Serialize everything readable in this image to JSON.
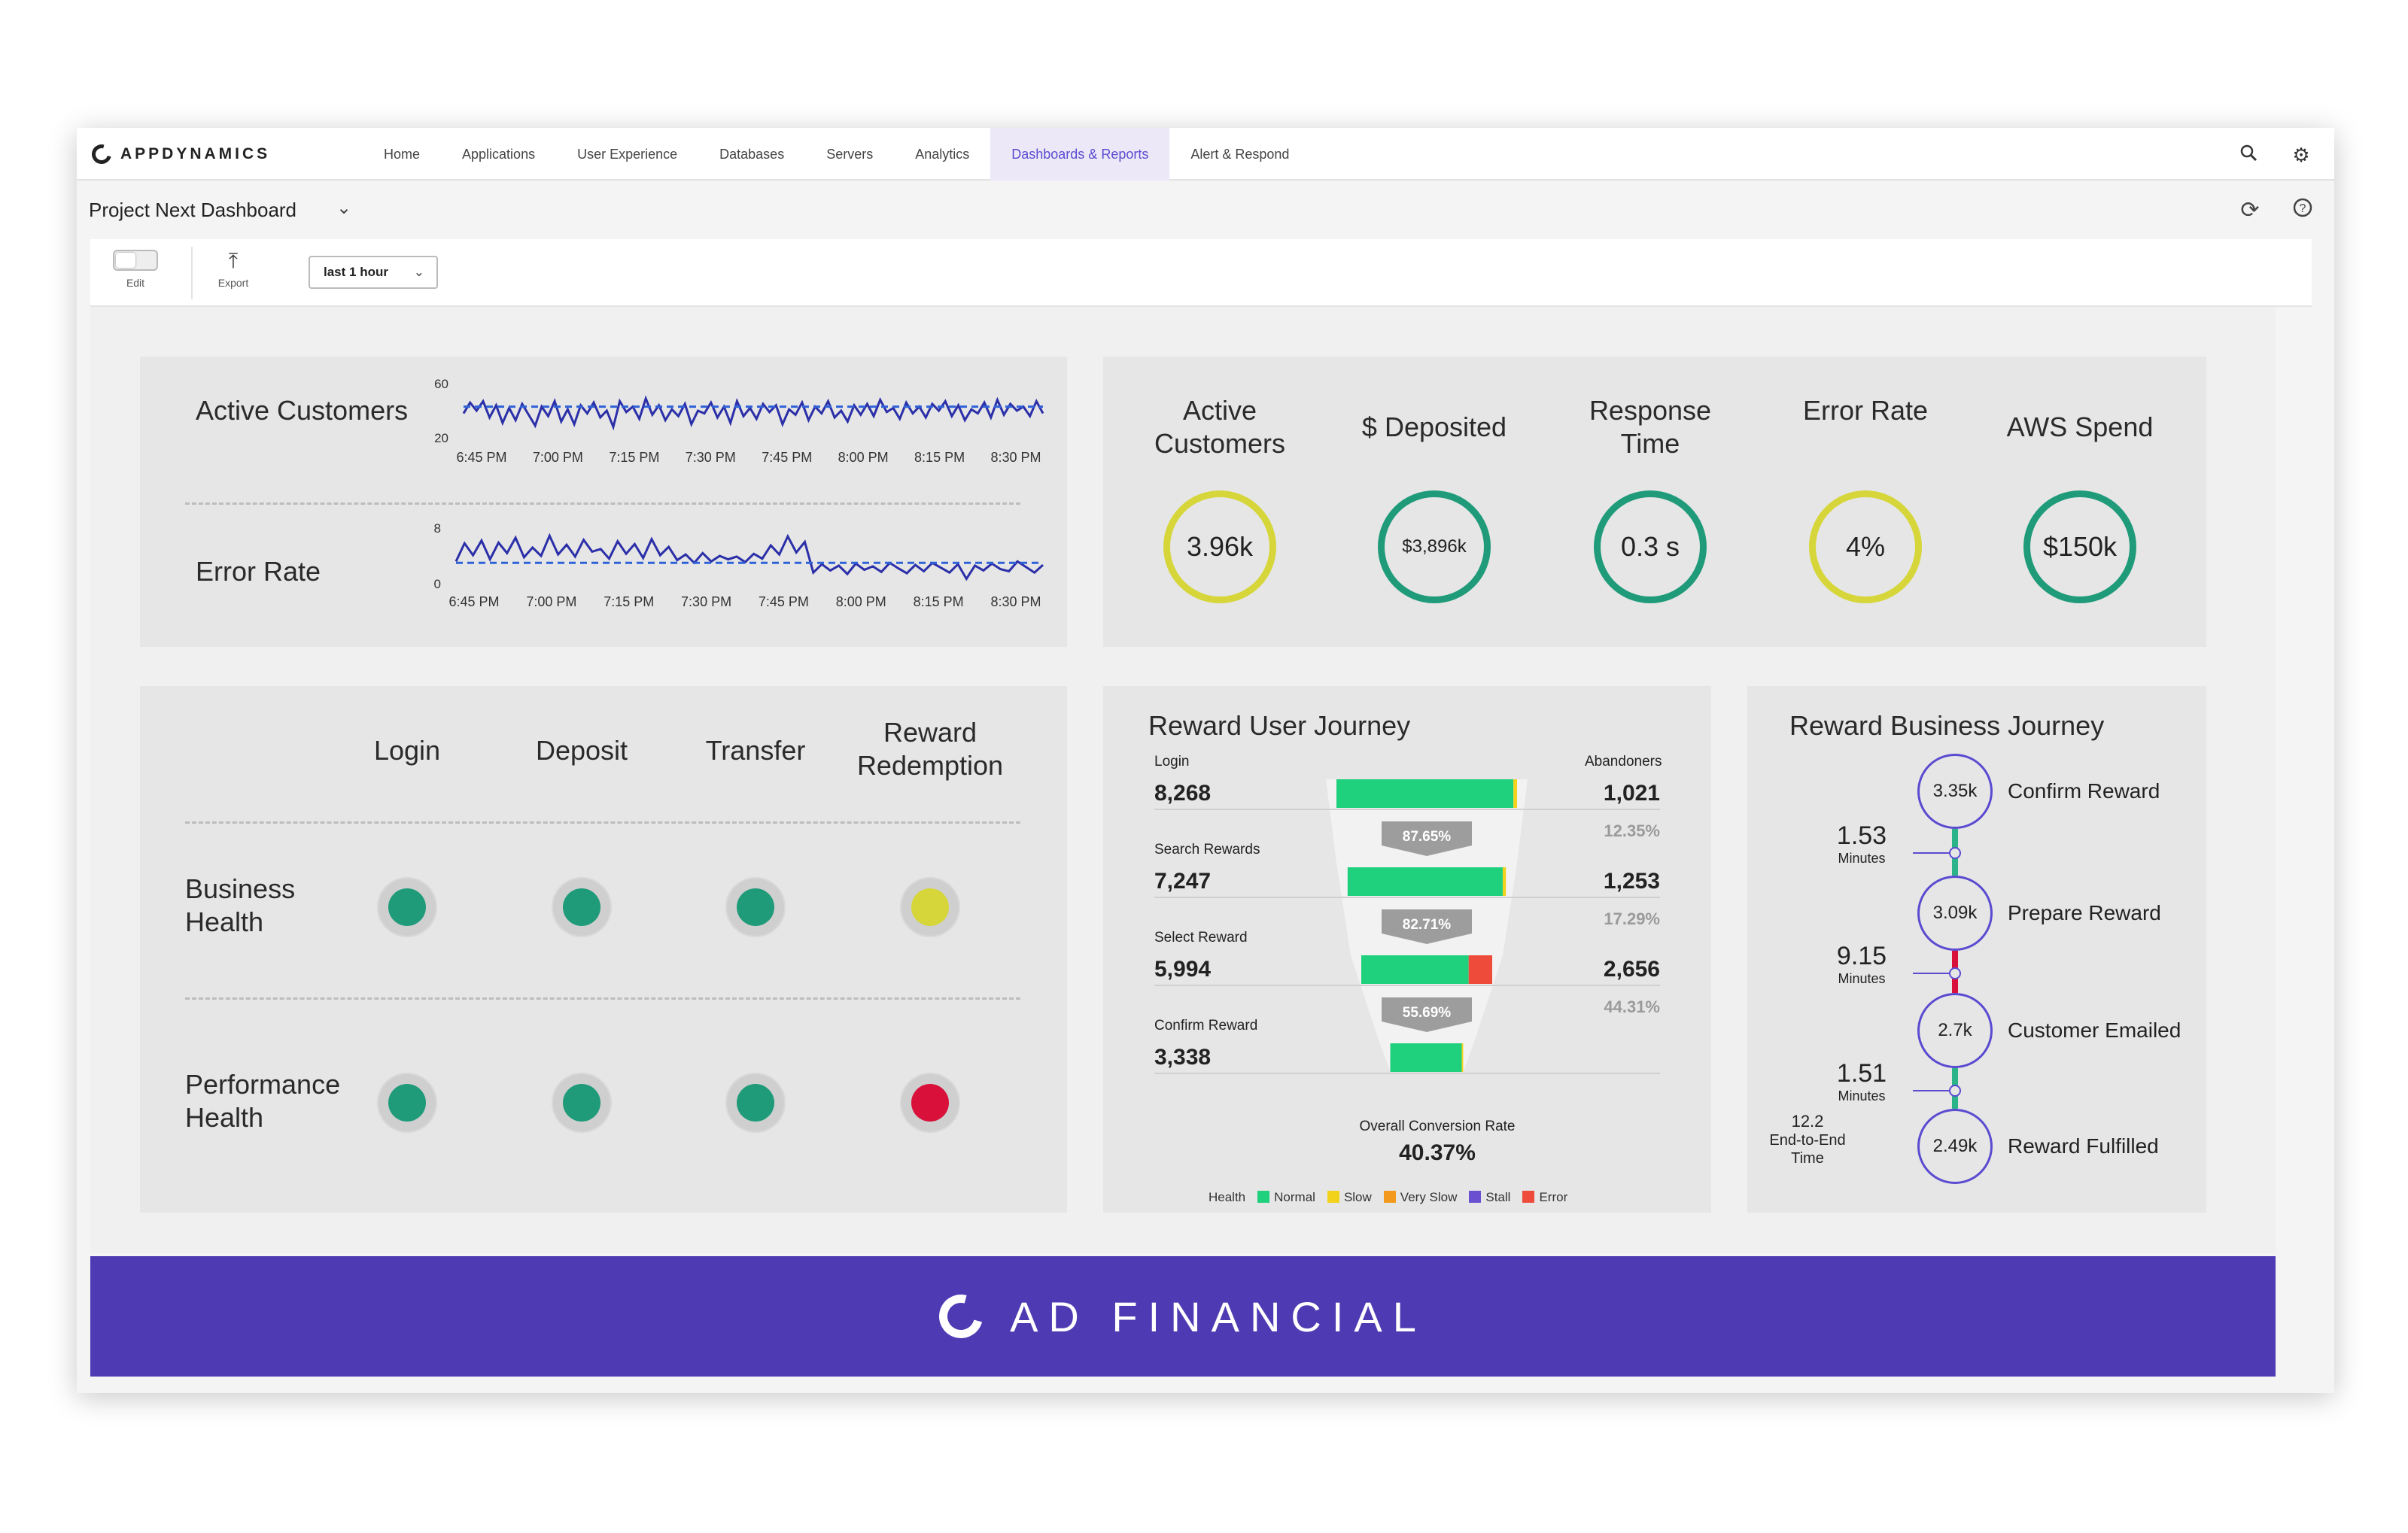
{
  "app": {
    "brand": "APPDYNAMICS"
  },
  "nav": {
    "items": [
      {
        "label": "Home"
      },
      {
        "label": "Applications"
      },
      {
        "label": "User Experience"
      },
      {
        "label": "Databases"
      },
      {
        "label": "Servers"
      },
      {
        "label": "Analytics"
      },
      {
        "label": "Dashboards & Reports",
        "active": true
      },
      {
        "label": "Alert & Respond"
      }
    ]
  },
  "dashboard": {
    "title": "Project Next Dashboard"
  },
  "toolbar": {
    "edit_label": "Edit",
    "export_label": "Export",
    "time_range": "last 1 hour"
  },
  "timeseries": {
    "x_ticks": [
      "6:45 PM",
      "7:00 PM",
      "7:15 PM",
      "7:30 PM",
      "7:45 PM",
      "8:00 PM",
      "8:15 PM",
      "8:30 PM"
    ],
    "active_customers": {
      "label": "Active Customers",
      "y_ticks": [
        "60",
        "20"
      ],
      "baseline": 43,
      "values": [
        38,
        46,
        40,
        47,
        35,
        44,
        31,
        42,
        33,
        45,
        37,
        29,
        43,
        36,
        47,
        32,
        41,
        30,
        44,
        38,
        46,
        35,
        40,
        28,
        47,
        39,
        43,
        34,
        49,
        37,
        44,
        33,
        41,
        36,
        45,
        30,
        40,
        38,
        46,
        35,
        43,
        31,
        47,
        36,
        42,
        34,
        45,
        39,
        44,
        30,
        41,
        37,
        46,
        33,
        43,
        38,
        47,
        35,
        40,
        32,
        44,
        37,
        45,
        36,
        48,
        39,
        42,
        34,
        46,
        38,
        43,
        35,
        45,
        40,
        47,
        36,
        44,
        33,
        41,
        38,
        46,
        35,
        48,
        37,
        45,
        40,
        43,
        36,
        47,
        38
      ]
    },
    "error_rate": {
      "label": "Error Rate",
      "y_ticks": [
        "8",
        "0"
      ],
      "baseline": 3,
      "values": [
        3.2,
        5.8,
        4.1,
        6.2,
        3.5,
        5.9,
        4.4,
        6.6,
        3.8,
        5.2,
        4.0,
        6.9,
        4.2,
        5.6,
        3.9,
        6.3,
        4.6,
        5.0,
        3.6,
        6.1,
        4.3,
        5.7,
        3.7,
        6.4,
        4.1,
        5.3,
        3.4,
        4.2,
        3.0,
        4.4,
        3.2,
        4.0,
        3.5,
        3.9,
        3.1,
        4.3,
        3.6,
        5.5,
        4.2,
        6.8,
        4.5,
        6.0,
        1.6,
        2.8,
        1.9,
        2.6,
        1.4,
        2.9,
        2.0,
        2.5,
        1.7,
        3.0,
        2.2,
        1.5,
        2.7,
        1.8,
        3.0,
        2.3,
        1.6,
        2.8,
        0.7,
        2.6,
        1.9,
        2.9,
        2.1,
        1.8,
        3.2,
        2.4,
        1.6,
        2.7
      ]
    }
  },
  "kpis": [
    {
      "label": "Active Customers",
      "value": "3.96k",
      "color": "#d6d63a"
    },
    {
      "label": "$ Deposited",
      "value": "$3,896k",
      "color": "#1f9b7a"
    },
    {
      "label": "Response Time",
      "value": "0.3 s",
      "color": "#1f9b7a"
    },
    {
      "label": "Error Rate",
      "value": "4%",
      "color": "#d6d63a"
    },
    {
      "label": "AWS Spend",
      "value": "$150k",
      "color": "#1f9b7a"
    }
  ],
  "health": {
    "columns": [
      "Login",
      "Deposit",
      "Transfer",
      "Reward Redemption"
    ],
    "rows": [
      {
        "label": "Business Health",
        "statuses": [
          "#1f9b7a",
          "#1f9b7a",
          "#1f9b7a",
          "#d6d63a"
        ]
      },
      {
        "label": "Performance Health",
        "statuses": [
          "#1f9b7a",
          "#1f9b7a",
          "#1f9b7a",
          "#d8103a"
        ]
      }
    ]
  },
  "user_journey": {
    "title": "Reward User Journey",
    "abandoners_label": "Abandoners",
    "steps": [
      {
        "name": "Login",
        "value": "8,268",
        "abandoners": "1,021",
        "abandon_pct": "12.35%",
        "conversion": "87.65%"
      },
      {
        "name": "Search Rewards",
        "value": "7,247",
        "abandoners": "1,253",
        "abandon_pct": "17.29%",
        "conversion": "82.71%"
      },
      {
        "name": "Select Reward",
        "value": "5,994",
        "abandoners": "2,656",
        "abandon_pct": "44.31%",
        "conversion": "55.69%"
      },
      {
        "name": "Confirm Reward",
        "value": "3,338"
      }
    ],
    "overall_label": "Overall Conversion Rate",
    "overall_value": "40.37%",
    "legend": {
      "title": "Health",
      "items": [
        {
          "label": "Normal",
          "color": "#1fd07c"
        },
        {
          "label": "Slow",
          "color": "#f2d21a"
        },
        {
          "label": "Very Slow",
          "color": "#f39a1e"
        },
        {
          "label": "Stall",
          "color": "#6a4fd0"
        },
        {
          "label": "Error",
          "color": "#ee4b3b"
        }
      ]
    }
  },
  "business_journey": {
    "title": "Reward Business Journey",
    "steps": [
      {
        "value": "3.35k",
        "name": "Confirm Reward"
      },
      {
        "value": "3.09k",
        "name": "Prepare Reward"
      },
      {
        "value": "2.7k",
        "name": "Customer Emailed"
      },
      {
        "value": "2.49k",
        "name": "Reward Fulfilled"
      }
    ],
    "intervals": [
      {
        "value": "1.53",
        "unit": "Minutes"
      },
      {
        "value": "9.15",
        "unit": "Minutes"
      },
      {
        "value": "1.51",
        "unit": "Minutes"
      }
    ],
    "end_to_end": {
      "value": "12.2",
      "label": "End-to-End Time"
    }
  },
  "banner": {
    "text": "AD FINANCIAL"
  }
}
